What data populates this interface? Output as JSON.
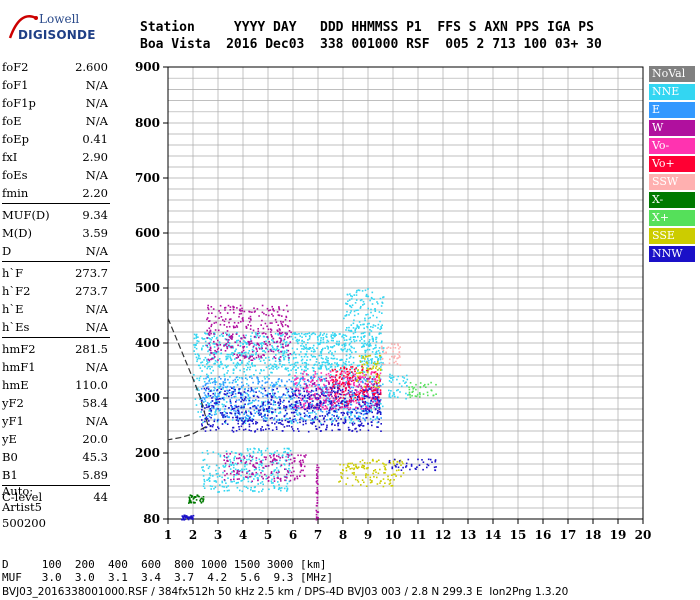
{
  "logo": {
    "line1": "Lowell",
    "line2": "DIGISONDE"
  },
  "header": {
    "labels": "Station     YYYY DAY   DDD HHMMSS P1  FFS S AXN PPS IGA PS",
    "values": "Boa Vista  2016 Dec03  338 001000 RSF  005 2 713 100 03+ 30"
  },
  "params_group1": [
    {
      "label": "foF2",
      "value": "2.600"
    },
    {
      "label": "foF1",
      "value": "N/A"
    },
    {
      "label": "foF1p",
      "value": "N/A"
    },
    {
      "label": "foE",
      "value": "N/A"
    },
    {
      "label": "foEp",
      "value": "0.41"
    },
    {
      "label": "fxI",
      "value": "2.90"
    },
    {
      "label": "foEs",
      "value": "N/A"
    },
    {
      "label": "fmin",
      "value": "2.20"
    }
  ],
  "params_group2": [
    {
      "label": "MUF(D)",
      "value": "9.34"
    },
    {
      "label": "M(D)",
      "value": "3.59"
    },
    {
      "label": "D",
      "value": "N/A"
    }
  ],
  "params_group3": [
    {
      "label": "h`F",
      "value": "273.7"
    },
    {
      "label": "h`F2",
      "value": "273.7"
    },
    {
      "label": "h`E",
      "value": "N/A"
    },
    {
      "label": "h`Es",
      "value": "N/A"
    }
  ],
  "params_group4": [
    {
      "label": "hmF2",
      "value": "281.5"
    },
    {
      "label": "hmF1",
      "value": "N/A"
    },
    {
      "label": "hmE",
      "value": "110.0"
    },
    {
      "label": "yF2",
      "value": "58.4"
    },
    {
      "label": "yF1",
      "value": "N/A"
    },
    {
      "label": "yE",
      "value": "20.0"
    },
    {
      "label": "B0",
      "value": "45.3"
    },
    {
      "label": "B1",
      "value": "5.89"
    }
  ],
  "clevel": {
    "label": "C-level",
    "value": "44"
  },
  "auto": {
    "line1": "Auto:",
    "line2": "Artist5",
    "line3": "500200"
  },
  "legend": [
    {
      "label": "NoVal",
      "color": "#808080"
    },
    {
      "label": "NNE",
      "color": "#33d6f2"
    },
    {
      "label": "E",
      "color": "#3399ff"
    },
    {
      "label": "W",
      "color": "#b0109e"
    },
    {
      "label": "Vo-",
      "color": "#ff33b0"
    },
    {
      "label": "Vo+",
      "color": "#ff0033"
    },
    {
      "label": "SSW",
      "color": "#ffb0b0"
    },
    {
      "label": "X-",
      "color": "#007a00"
    },
    {
      "label": "X+",
      "color": "#55e05a"
    },
    {
      "label": "SSE",
      "color": "#cccc00"
    },
    {
      "label": "NNW",
      "color": "#1a10c8"
    }
  ],
  "bottom": {
    "line1": "D     100  200  400  600  800 1000 1500 3000 [km]",
    "line2": "MUF   3.0  3.0  3.1  3.4  3.7  4.2  5.6  9.3 [MHz]",
    "line3": "BVJ03_2016338001000.RSF / 384fx512h 50 kHz 2.5 km / DPS-4D BVJ03 003 / 2.8 N 299.3 E  Ion2Png 1.3.20"
  },
  "chart_data": {
    "type": "scatter",
    "x_ticks": [
      "1",
      "2",
      "3",
      "4",
      "5",
      "6",
      "7",
      "8",
      "9",
      "10",
      "11",
      "12",
      "13",
      "14",
      "15",
      "16",
      "17",
      "18",
      "19",
      "20"
    ],
    "y_ticks": [
      "80",
      "200",
      "300",
      "400",
      "500",
      "600",
      "700",
      "800",
      "900"
    ],
    "xlim": [
      1,
      20
    ],
    "ylim": [
      80,
      900
    ],
    "grid": true,
    "regions": [
      {
        "series": "NNE",
        "f": [
          2.0,
          9.6
        ],
        "h": [
          350,
          420
        ]
      },
      {
        "series": "NNE",
        "f": [
          2.0,
          9.6
        ],
        "h": [
          255,
          420
        ]
      },
      {
        "series": "NNE",
        "f": [
          2.3,
          5.9
        ],
        "h": [
          130,
          210
        ]
      },
      {
        "series": "NNE",
        "f": [
          9.8,
          10.6
        ],
        "h": [
          300,
          345
        ]
      },
      {
        "series": "NNE",
        "f": [
          8.0,
          9.6
        ],
        "h": [
          420,
          500
        ]
      },
      {
        "series": "E",
        "f": [
          2.3,
          9.5
        ],
        "h": [
          260,
          340
        ]
      },
      {
        "series": "W",
        "f": [
          2.5,
          5.9
        ],
        "h": [
          370,
          470
        ]
      },
      {
        "series": "W",
        "f": [
          3.2,
          6.5
        ],
        "h": [
          150,
          200
        ]
      },
      {
        "series": "W",
        "f": [
          6.9,
          7.0
        ],
        "h": [
          80,
          180
        ]
      },
      {
        "series": "W",
        "f": [
          6.5,
          9.5
        ],
        "h": [
          280,
          340
        ]
      },
      {
        "series": "Vo-",
        "f": [
          6.0,
          9.5
        ],
        "h": [
          280,
          350
        ]
      },
      {
        "series": "Vo+",
        "f": [
          7.5,
          9.5
        ],
        "h": [
          290,
          360
        ]
      },
      {
        "series": "SSW",
        "f": [
          9.5,
          10.3
        ],
        "h": [
          360,
          400
        ]
      },
      {
        "series": "SSE",
        "f": [
          7.8,
          10.4
        ],
        "h": [
          140,
          190
        ]
      },
      {
        "series": "SSE",
        "f": [
          8.5,
          9.5
        ],
        "h": [
          320,
          380
        ]
      },
      {
        "series": "NNW",
        "f": [
          2.3,
          9.5
        ],
        "h": [
          240,
          320
        ]
      },
      {
        "series": "NNW",
        "f": [
          9.8,
          11.7
        ],
        "h": [
          170,
          190
        ]
      },
      {
        "series": "NNW",
        "f": [
          1.5,
          2.0
        ],
        "h": [
          80,
          88
        ]
      },
      {
        "series": "X-",
        "f": [
          1.8,
          2.4
        ],
        "h": [
          110,
          125
        ]
      },
      {
        "series": "X+",
        "f": [
          10.6,
          11.7
        ],
        "h": [
          300,
          330
        ]
      }
    ],
    "model_curve": [
      [
        1.0,
        445
      ],
      [
        1.5,
        390
      ],
      [
        2.0,
        335
      ],
      [
        2.3,
        300
      ],
      [
        2.6,
        250
      ],
      [
        2.0,
        235
      ],
      [
        1.5,
        228
      ],
      [
        1.0,
        224
      ]
    ]
  }
}
